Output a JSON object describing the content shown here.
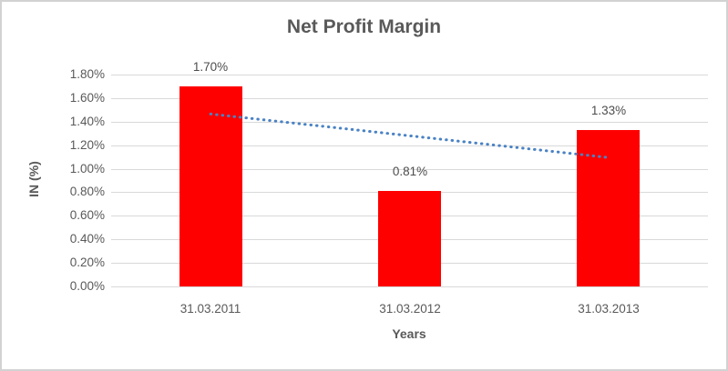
{
  "window": {
    "background": "#ffffff",
    "border_color": "#d2d2d2"
  },
  "chart_data": {
    "type": "bar",
    "title": "Net Profit Margin",
    "xlabel": "Years",
    "ylabel": "IN (%)",
    "categories": [
      "31.03.2011",
      "31.03.2012",
      "31.03.2013"
    ],
    "values": [
      1.7,
      0.81,
      1.33
    ],
    "data_labels": [
      "1.70%",
      "0.81%",
      "1.33%"
    ],
    "ylim": [
      0,
      1.8
    ],
    "ytick_step": 0.2,
    "ytick_labels": [
      "0.00%",
      "0.20%",
      "0.40%",
      "0.60%",
      "0.80%",
      "1.00%",
      "1.20%",
      "1.40%",
      "1.60%",
      "1.80%"
    ],
    "grid": true,
    "legend": "none",
    "bar_color": "#ff0000",
    "gridline_color": "#d9d9d9",
    "text_color": "#595959",
    "trendline": {
      "type": "linear",
      "style": "dotted",
      "color": "#4a82c4",
      "start_value": 1.465,
      "end_value": 1.095
    }
  }
}
